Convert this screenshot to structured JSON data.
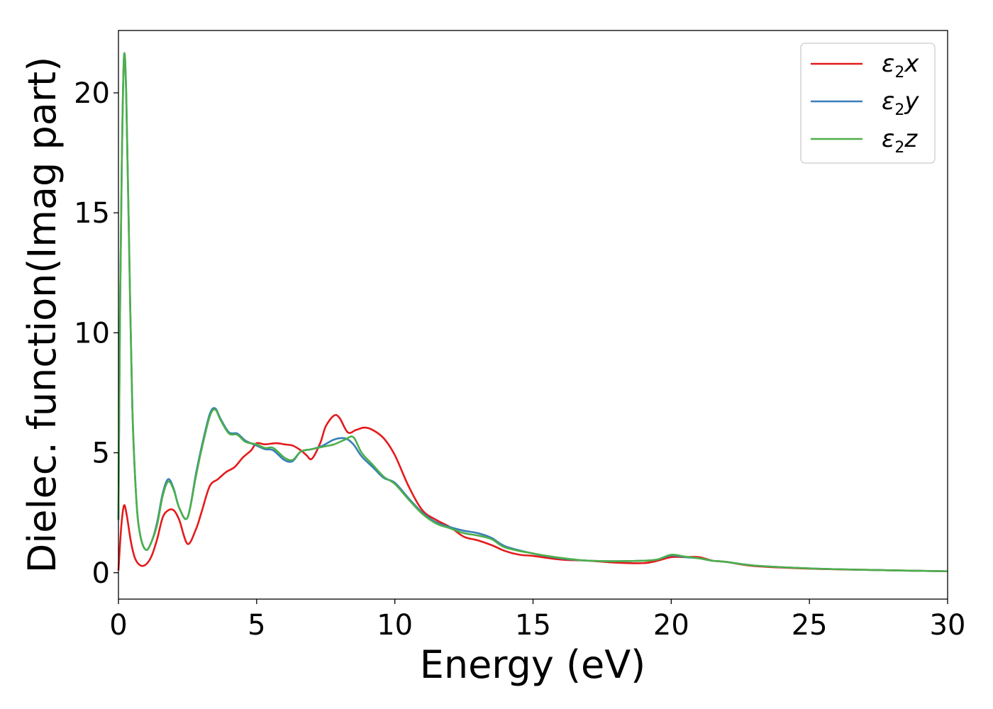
{
  "chart_data": {
    "type": "line",
    "title": "",
    "xlabel": "Energy (eV)",
    "ylabel": "Dielec. function(Imag part)",
    "xlim": [
      0,
      30
    ],
    "ylim": [
      -1.1,
      22.6
    ],
    "xticks": [
      0,
      5,
      10,
      15,
      20,
      25,
      30
    ],
    "yticks": [
      0,
      5,
      10,
      15,
      20
    ],
    "grid": false,
    "legend_position": "top-right",
    "series": [
      {
        "name": "ε2x",
        "legend_main": "ε",
        "legend_sub": "2",
        "legend_tail": "x",
        "color": "#e41a1c",
        "x": [
          0,
          0.1,
          0.2,
          0.3,
          0.45,
          0.6,
          0.8,
          1.0,
          1.2,
          1.4,
          1.6,
          1.8,
          2.0,
          2.2,
          2.5,
          2.8,
          3.0,
          3.3,
          3.6,
          3.9,
          4.2,
          4.5,
          4.8,
          5.0,
          5.3,
          5.7,
          6.0,
          6.3,
          6.6,
          6.8,
          7.0,
          7.3,
          7.5,
          7.8,
          8.0,
          8.3,
          8.6,
          8.9,
          9.2,
          9.6,
          10.0,
          10.5,
          11.0,
          11.5,
          12.0,
          12.5,
          13.0,
          13.5,
          14.0,
          14.5,
          15.0,
          16.0,
          17.0,
          18.0,
          19.0,
          19.5,
          20.0,
          20.5,
          21.0,
          21.5,
          22.0,
          23.0,
          25.0,
          27.0,
          30.0
        ],
        "y": [
          0.1,
          1.9,
          2.8,
          2.4,
          1.3,
          0.6,
          0.3,
          0.35,
          0.7,
          1.4,
          2.3,
          2.6,
          2.6,
          2.2,
          1.2,
          1.8,
          2.5,
          3.6,
          3.9,
          4.2,
          4.4,
          4.8,
          5.1,
          5.4,
          5.35,
          5.4,
          5.35,
          5.3,
          5.1,
          4.9,
          4.75,
          5.4,
          6.1,
          6.55,
          6.45,
          5.85,
          5.95,
          6.05,
          5.95,
          5.6,
          4.9,
          3.6,
          2.6,
          2.2,
          1.9,
          1.5,
          1.35,
          1.15,
          0.9,
          0.75,
          0.7,
          0.55,
          0.5,
          0.42,
          0.4,
          0.5,
          0.65,
          0.65,
          0.65,
          0.5,
          0.45,
          0.28,
          0.17,
          0.12,
          0.06
        ]
      },
      {
        "name": "ε2y",
        "legend_main": "ε",
        "legend_sub": "2",
        "legend_tail": "y",
        "color": "#377eb8",
        "x": [
          0,
          0.05,
          0.12,
          0.2,
          0.28,
          0.38,
          0.5,
          0.65,
          0.8,
          1.0,
          1.2,
          1.4,
          1.6,
          1.8,
          2.0,
          2.2,
          2.5,
          2.8,
          3.0,
          3.3,
          3.5,
          3.7,
          4.0,
          4.3,
          4.6,
          5.0,
          5.3,
          5.6,
          6.0,
          6.3,
          6.6,
          7.0,
          7.4,
          7.8,
          8.2,
          8.5,
          8.8,
          9.2,
          9.6,
          10.0,
          10.5,
          11.0,
          11.5,
          12.0,
          12.5,
          13.0,
          13.5,
          14.0,
          15.0,
          16.0,
          17.0,
          18.0,
          19.0,
          19.5,
          20.0,
          20.5,
          21.0,
          21.5,
          22.0,
          23.0,
          25.0,
          27.0,
          30.0
        ],
        "y": [
          2.2,
          10.0,
          17.0,
          21.5,
          20.0,
          14.0,
          7.0,
          3.0,
          1.5,
          0.95,
          1.3,
          2.1,
          3.3,
          3.9,
          3.5,
          2.7,
          2.3,
          4.1,
          5.2,
          6.6,
          6.85,
          6.4,
          5.85,
          5.8,
          5.5,
          5.3,
          5.15,
          5.1,
          4.7,
          4.65,
          5.05,
          5.15,
          5.3,
          5.55,
          5.6,
          5.35,
          4.85,
          4.4,
          3.95,
          3.75,
          3.1,
          2.5,
          2.1,
          1.9,
          1.75,
          1.65,
          1.45,
          1.1,
          0.8,
          0.6,
          0.5,
          0.48,
          0.5,
          0.55,
          0.72,
          0.65,
          0.6,
          0.5,
          0.45,
          0.3,
          0.18,
          0.12,
          0.06
        ]
      },
      {
        "name": "ε2z",
        "legend_main": "ε",
        "legend_sub": "2",
        "legend_tail": "z",
        "color": "#4daf4a",
        "x": [
          0,
          0.05,
          0.12,
          0.2,
          0.28,
          0.38,
          0.5,
          0.65,
          0.8,
          1.0,
          1.2,
          1.4,
          1.6,
          1.8,
          2.0,
          2.2,
          2.5,
          2.8,
          3.0,
          3.3,
          3.5,
          3.7,
          4.0,
          4.3,
          4.6,
          5.0,
          5.3,
          5.6,
          6.0,
          6.3,
          6.6,
          7.0,
          7.4,
          7.8,
          8.2,
          8.5,
          8.8,
          9.2,
          9.6,
          10.0,
          10.5,
          11.0,
          11.5,
          12.0,
          12.5,
          13.0,
          13.5,
          14.0,
          15.0,
          16.0,
          17.0,
          18.0,
          19.0,
          19.5,
          20.0,
          20.5,
          21.0,
          21.5,
          22.0,
          23.0,
          25.0,
          27.0,
          30.0
        ],
        "y": [
          2.2,
          10.0,
          17.0,
          21.5,
          20.0,
          14.0,
          7.0,
          3.0,
          1.5,
          0.95,
          1.3,
          2.0,
          3.2,
          3.8,
          3.45,
          2.7,
          2.3,
          4.0,
          5.1,
          6.5,
          6.8,
          6.35,
          5.8,
          5.75,
          5.45,
          5.35,
          5.2,
          5.2,
          4.8,
          4.7,
          5.05,
          5.15,
          5.25,
          5.35,
          5.55,
          5.65,
          5.0,
          4.5,
          4.0,
          3.7,
          3.05,
          2.45,
          2.05,
          1.85,
          1.65,
          1.55,
          1.4,
          1.05,
          0.8,
          0.62,
          0.5,
          0.48,
          0.5,
          0.55,
          0.75,
          0.67,
          0.6,
          0.5,
          0.45,
          0.3,
          0.18,
          0.12,
          0.06
        ]
      }
    ]
  }
}
